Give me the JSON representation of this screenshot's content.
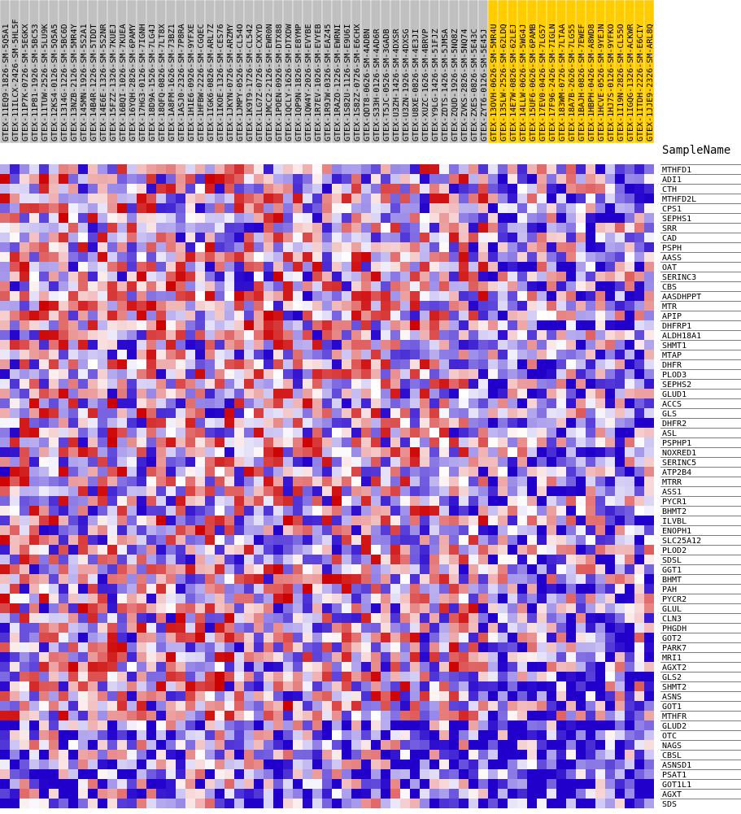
{
  "header": {
    "sample_name_label": "SampleName"
  },
  "colors": {
    "group_a_header": "#c0c0c0",
    "group_b_header": "#ffcc00",
    "low": "#2200cc",
    "mid": "#ffffff",
    "high": "#cc0000"
  },
  "chart_data": {
    "type": "heatmap",
    "title": "",
    "xlabel": "",
    "ylabel": "",
    "value_range": [
      -1,
      1
    ],
    "columns": [
      {
        "name": "GTEX-11EQ9-1826-SM-5Q5A1",
        "group": "A"
      },
      {
        "name": "GTEX-11ILCX-2426-SM-5HL5F",
        "group": "A"
      },
      {
        "name": "GTEX-11P7K-0726-SM-5EGKX",
        "group": "A"
      },
      {
        "name": "GTEX-11P81-1926-SM-5BC53",
        "group": "A"
      },
      {
        "name": "GTEX-11TUW-2526-SM-5LU9K",
        "group": "A"
      },
      {
        "name": "GTEX-12KS4-0126-SM-5Q5A5",
        "group": "A"
      },
      {
        "name": "GTEX-1314G-1226-SM-5BC6D",
        "group": "A"
      },
      {
        "name": "GTEX-13NZB-2126-SM-5MR4Y",
        "group": "A"
      },
      {
        "name": "GTEX-145MN-1926-SM-5S2A1",
        "group": "A"
      },
      {
        "name": "GTEX-14B4R-1226-SM-5TDDT",
        "group": "A"
      },
      {
        "name": "GTEX-14E6E-1326-SM-5S2NR",
        "group": "A"
      },
      {
        "name": "GTEX-15FZZ-1326-SM-7KUEJ",
        "group": "A"
      },
      {
        "name": "GTEX-16BQI-1026-SM-7KUEA",
        "group": "A"
      },
      {
        "name": "GTEX-16YQH-2826-SM-6PAMY",
        "group": "A"
      },
      {
        "name": "GTEX-17HG3-0126-SM-7IGNH",
        "group": "A"
      },
      {
        "name": "GTEX-18D9A-1526-SM-7LG4J",
        "group": "A"
      },
      {
        "name": "GTEX-18QFQ-0826-SM-7LT8X",
        "group": "A"
      },
      {
        "name": "GTEX-1A8FM-1626-SM-73BZ1",
        "group": "A"
      },
      {
        "name": "GTEX-1ASJ0-2326-SM-7P8RA",
        "group": "A"
      },
      {
        "name": "GTEX-1H1E6-0926-SM-9YFXE",
        "group": "A"
      },
      {
        "name": "GTEX-1HFBW-2226-SM-CGQEC",
        "group": "A"
      },
      {
        "name": "GTEX-1IGK6-0826-SM-ARL7Z",
        "group": "A"
      },
      {
        "name": "GTEX-1IKOE-1326-SM-CES76",
        "group": "A"
      },
      {
        "name": "GTEX-1JKYN-0726-SM-ARZMY",
        "group": "A"
      },
      {
        "name": "GTEX-1JMPY-0526-SM-CL54O",
        "group": "A"
      },
      {
        "name": "GTEX-1K9T9-1726-SM-CL542",
        "group": "A"
      },
      {
        "name": "GTEX-1LG7Z-0726-SM-CXXYD",
        "group": "A"
      },
      {
        "name": "GTEX-1MCC2-2126-SM-EWR0N",
        "group": "A"
      },
      {
        "name": "GTEX-1POEN-0926-SM-DTX88",
        "group": "A"
      },
      {
        "name": "GTEX-1QCLY-1626-SM-DTXDW",
        "group": "A"
      },
      {
        "name": "GTEX-1QP9N-1826-SM-E8YMP",
        "group": "A"
      },
      {
        "name": "GTEX-1QW4Y-2026-SM-EVYBE",
        "group": "A"
      },
      {
        "name": "GTEX-1R7EV-1026-SM-EVYEB",
        "group": "A"
      },
      {
        "name": "GTEX-1R9JW-0326-SM-EAZ45",
        "group": "A"
      },
      {
        "name": "GTEX-1RAZO-1226-SM-EWRNI",
        "group": "A"
      },
      {
        "name": "GTEX-1S82U-1126-SM-E9U6I",
        "group": "A"
      },
      {
        "name": "GTEX-1S82Z-0726-SM-E6CHX",
        "group": "A"
      },
      {
        "name": "GTEX-QDT8-0626-SM-4ADBN",
        "group": "A"
      },
      {
        "name": "GTEX-S33H-0126-SM-4AD6R",
        "group": "A"
      },
      {
        "name": "GTEX-T5JC-0526-SM-3GADB",
        "group": "A"
      },
      {
        "name": "GTEX-U3ZH-1426-SM-4DXSR",
        "group": "A"
      },
      {
        "name": "GTEX-U3ZN-1926-SM-4DXSG",
        "group": "A"
      },
      {
        "name": "GTEX-U8XE-0826-SM-4E3JI",
        "group": "A"
      },
      {
        "name": "GTEX-XUZC-1626-SM-4BRVP",
        "group": "A"
      },
      {
        "name": "GTEX-Y9LG-1426-SM-51FJZ",
        "group": "A"
      },
      {
        "name": "GTEX-ZDTS-1426-SM-5JMSA",
        "group": "A"
      },
      {
        "name": "GTEX-ZQUD-1926-SM-5NQ8Z",
        "group": "A"
      },
      {
        "name": "GTEX-ZVKS-2826-SM-5NQ74",
        "group": "A"
      },
      {
        "name": "GTEX-ZXES-0826-SM-5E43C",
        "group": "A"
      },
      {
        "name": "GTEX-ZYT6-0126-SM-5E45J",
        "group": "A"
      },
      {
        "name": "GTEX-13OVH-0626-SM-5MR4U",
        "group": "B"
      },
      {
        "name": "GTEX-135LW-2526-SM-62LDQ",
        "group": "B"
      },
      {
        "name": "GTEX-14E7W-0826-SM-62LEJ",
        "group": "B"
      },
      {
        "name": "GTEX-14LLW-0626-SM-5WG4J",
        "group": "B"
      },
      {
        "name": "GTEX-15UF6-0626-SM-6PAMB",
        "group": "B"
      },
      {
        "name": "GTEX-17EV0-0426-SM-7LG57",
        "group": "B"
      },
      {
        "name": "GTEX-17F96-2426-SM-7IGLN",
        "group": "B"
      },
      {
        "name": "GTEX-183WM-0726-SM-7LTAA",
        "group": "B"
      },
      {
        "name": "GTEX-18A7B-2626-SM-7LG55",
        "group": "B"
      },
      {
        "name": "GTEX-1BAJH-0826-SM-7EWEF",
        "group": "B"
      },
      {
        "name": "GTEX-1HBPH-0426-SM-A8WD8",
        "group": "B"
      },
      {
        "name": "GTEX-1HCVE-0526-SM-9YEJN",
        "group": "B"
      },
      {
        "name": "GTEX-1HJ7S-0126-SM-9YFKO",
        "group": "B"
      },
      {
        "name": "GTEX-1I19N-2826-SM-CL55O",
        "group": "B"
      },
      {
        "name": "GTEX-1IGQG-1326-SM-ACKWR",
        "group": "B"
      },
      {
        "name": "GTEX-1ITDH-2226-SM-E6CIY",
        "group": "B"
      },
      {
        "name": "GTEX-1JJE9-2326-SM-ARL8Q",
        "group": "B"
      }
    ],
    "rows": [
      "MTHFD1",
      "ADI1",
      "CTH",
      "MTHFD2L",
      "CPS1",
      "SEPHS1",
      "SRR",
      "CAD",
      "PSPH",
      "AASS",
      "OAT",
      "SERINC3",
      "CBS",
      "AASDHPPT",
      "MTR",
      "APIP",
      "DHFRP1",
      "ALDH18A1",
      "SHMT1",
      "MTAP",
      "DHFR",
      "PLOD3",
      "SEPHS2",
      "GLUD1",
      "ACCS",
      "GLS",
      "DHFR2",
      "ASL",
      "PSPHP1",
      "NOXRED1",
      "SERINC5",
      "ATP2B4",
      "MTRR",
      "ASS1",
      "PYCR1",
      "BHMT2",
      "ILVBL",
      "ENOPH1",
      "SLC25A12",
      "PLOD2",
      "SDSL",
      "GGT1",
      "BHMT",
      "PAH",
      "PYCR2",
      "GLUL",
      "CLN3",
      "PHGDH",
      "GOT2",
      "PARK7",
      "MRI1",
      "AGXT2",
      "GLS2",
      "SHMT2",
      "ASNS",
      "GOT1",
      "MTHFR",
      "GLUD2",
      "OTC",
      "NAGS",
      "CBSL",
      "ASNSD1",
      "PSAT1",
      "GOT1L1",
      "AGXT",
      "SDS"
    ]
  }
}
